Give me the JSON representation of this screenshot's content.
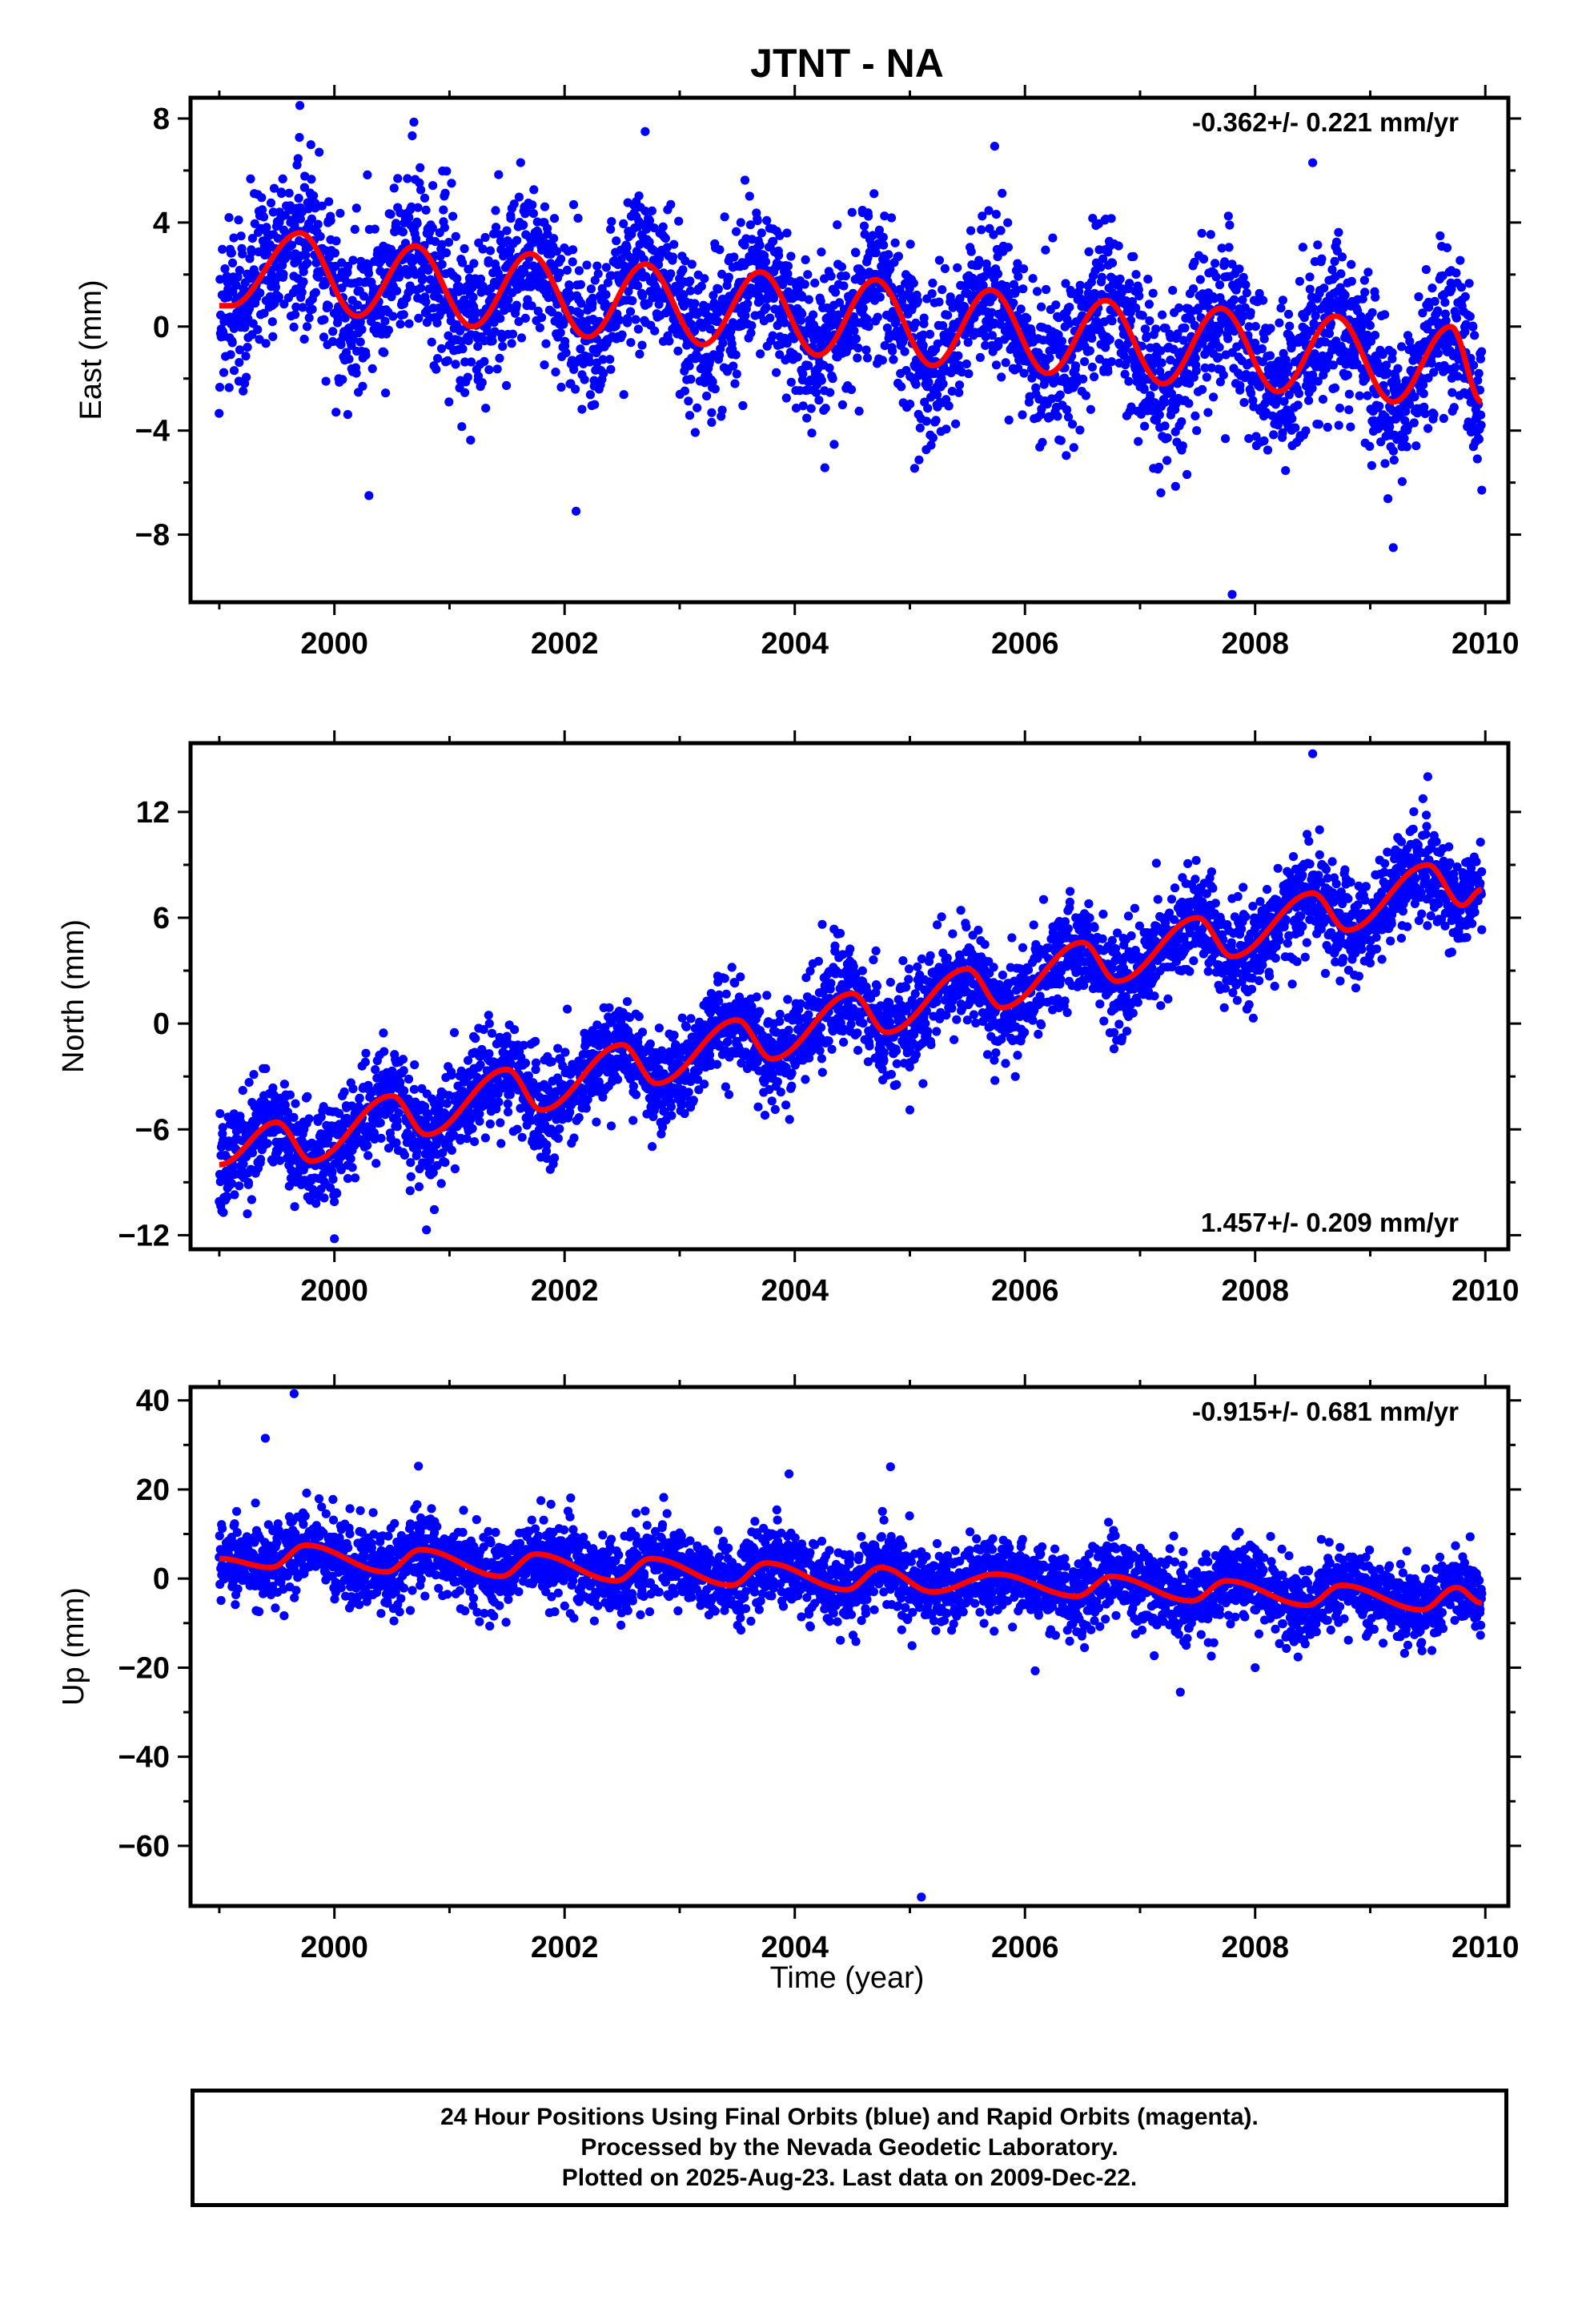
{
  "title": "JTNT - NA",
  "footer": {
    "line1": "24 Hour Positions Using Final Orbits (blue) and Rapid Orbits (magenta).",
    "line2": "Processed by the Nevada Geodetic Laboratory.",
    "line3": "Plotted on 2025-Aug-23. Last data on 2009-Dec-22."
  },
  "colors": {
    "points": "#0000ff",
    "model": "#ff0000"
  },
  "chart_data": [
    {
      "type": "scatter",
      "ylabel": "East (mm)",
      "xlim": [
        1998.75,
        2010.2
      ],
      "ylim": [
        -10.6,
        8.8
      ],
      "xticks": [
        2000,
        2002,
        2004,
        2006,
        2008,
        2010
      ],
      "xtick_labels": [
        "2000",
        "2002",
        "2004",
        "2006",
        "2008",
        "2010"
      ],
      "yticks": [
        -8,
        -4,
        0,
        4,
        8
      ],
      "ytick_labels": [
        "−8",
        "−4",
        "0",
        "4",
        "8"
      ],
      "rate_label": "-0.362+/- 0.221 mm/yr",
      "rate_position": "top-right",
      "model": {
        "x_range": [
          1999.0,
          2009.97
        ],
        "mid_value": 0.0,
        "rate": -0.362,
        "step_up": [],
        "annual_peaks": [
          [
            1999.7,
            3.6
          ],
          [
            2000.7,
            3.1
          ],
          [
            2001.7,
            2.8
          ],
          [
            2002.7,
            2.4
          ],
          [
            2003.7,
            2.1
          ],
          [
            2004.7,
            1.8
          ],
          [
            2005.7,
            1.4
          ],
          [
            2006.7,
            1.0
          ],
          [
            2007.7,
            0.7
          ],
          [
            2008.7,
            0.4
          ],
          [
            2009.7,
            0.0
          ]
        ],
        "annual_troughs": [
          [
            1999.1,
            0.8
          ],
          [
            2000.2,
            0.4
          ],
          [
            2001.2,
            0.0
          ],
          [
            2002.2,
            -0.4
          ],
          [
            2003.2,
            -0.7
          ],
          [
            2004.2,
            -1.1
          ],
          [
            2005.2,
            -1.5
          ],
          [
            2006.2,
            -1.8
          ],
          [
            2007.2,
            -2.2
          ],
          [
            2008.2,
            -2.5
          ],
          [
            2009.2,
            -2.9
          ],
          [
            2009.97,
            -2.9
          ]
        ]
      },
      "scatter": {
        "n": 3700,
        "x_range": [
          1999.0,
          2009.97
        ],
        "noise_sd": 1.5,
        "outliers": [
          [
            1999.7,
            8.5
          ],
          [
            2000.3,
            -6.5
          ],
          [
            2002.1,
            -7.1
          ],
          [
            2007.8,
            -10.3
          ],
          [
            2009.2,
            -8.5
          ],
          [
            2008.5,
            6.3
          ],
          [
            2002.7,
            7.5
          ]
        ]
      }
    },
    {
      "type": "scatter",
      "ylabel": "North (mm)",
      "xlim": [
        1998.75,
        2010.2
      ],
      "ylim": [
        -12.8,
        15.9
      ],
      "xticks": [
        2000,
        2002,
        2004,
        2006,
        2008,
        2010
      ],
      "xtick_labels": [
        "2000",
        "2002",
        "2004",
        "2006",
        "2008",
        "2010"
      ],
      "yticks": [
        -12,
        -6,
        0,
        6,
        12
      ],
      "ytick_labels": [
        "−12",
        "−6",
        "0",
        "6",
        "12"
      ],
      "rate_label": "1.457+/- 0.209 mm/yr",
      "rate_position": "bottom-right",
      "model": {
        "x_range": [
          1999.0,
          2009.97
        ],
        "annual_peaks": [
          [
            1999.5,
            -5.6
          ],
          [
            2000.5,
            -4.1
          ],
          [
            2001.5,
            -2.6
          ],
          [
            2002.5,
            -1.2
          ],
          [
            2003.5,
            0.2
          ],
          [
            2004.5,
            1.7
          ],
          [
            2005.5,
            3.1
          ],
          [
            2006.5,
            4.6
          ],
          [
            2007.5,
            6.0
          ],
          [
            2008.5,
            7.4
          ],
          [
            2009.5,
            9.0
          ]
        ],
        "annual_troughs": [
          [
            1999.0,
            -8.0
          ],
          [
            1999.8,
            -7.8
          ],
          [
            2000.8,
            -6.3
          ],
          [
            2001.8,
            -4.9
          ],
          [
            2002.8,
            -3.4
          ],
          [
            2003.8,
            -2.0
          ],
          [
            2004.8,
            -0.5
          ],
          [
            2005.8,
            0.9
          ],
          [
            2006.8,
            2.4
          ],
          [
            2007.8,
            3.8
          ],
          [
            2008.8,
            5.3
          ],
          [
            2009.8,
            6.7
          ],
          [
            2009.97,
            7.6
          ]
        ]
      },
      "scatter": {
        "n": 3700,
        "x_range": [
          1999.0,
          2009.97
        ],
        "noise_sd": 1.35,
        "outliers": [
          [
            2008.5,
            15.3
          ],
          [
            2009.5,
            14.0
          ],
          [
            2000.0,
            -12.2
          ],
          [
            2000.8,
            -11.7
          ],
          [
            2005.0,
            -4.9
          ]
        ]
      }
    },
    {
      "type": "scatter",
      "ylabel": "Up (mm)",
      "xlim": [
        1998.75,
        2010.2
      ],
      "ylim": [
        -73.5,
        43.0
      ],
      "xticks": [
        2000,
        2002,
        2004,
        2006,
        2008,
        2010
      ],
      "xtick_labels": [
        "2000",
        "2002",
        "2004",
        "2006",
        "2008",
        "2010"
      ],
      "yticks": [
        -60,
        -40,
        -20,
        0,
        20,
        40
      ],
      "ytick_labels": [
        "−60",
        "−40",
        "−20",
        "0",
        "20",
        "40"
      ],
      "rate_label": "-0.915+/- 0.681 mm/yr",
      "rate_position": "top-right",
      "model": {
        "x_range": [
          1999.0,
          2009.97
        ],
        "annual_peaks": [
          [
            1999.75,
            7.5
          ],
          [
            2000.75,
            6.5
          ],
          [
            2001.75,
            5.5
          ],
          [
            2002.75,
            4.5
          ],
          [
            2003.75,
            3.5
          ],
          [
            2004.75,
            2.5
          ],
          [
            2005.75,
            1.0
          ],
          [
            2006.75,
            0.5
          ],
          [
            2007.75,
            -0.5
          ],
          [
            2008.75,
            -1.5
          ],
          [
            2009.75,
            -2.0
          ]
        ],
        "annual_troughs": [
          [
            1999.0,
            4.5
          ],
          [
            1999.45,
            2.5
          ],
          [
            2000.45,
            1.5
          ],
          [
            2001.45,
            0.5
          ],
          [
            2002.45,
            -0.5
          ],
          [
            2003.45,
            -1.5
          ],
          [
            2004.45,
            -2.5
          ],
          [
            2005.2,
            -3.0
          ],
          [
            2006.45,
            -4.0
          ],
          [
            2007.45,
            -5.0
          ],
          [
            2008.45,
            -6.0
          ],
          [
            2009.45,
            -7.0
          ],
          [
            2009.97,
            -5.5
          ]
        ]
      },
      "scatter": {
        "n": 3700,
        "x_range": [
          1999.0,
          2009.97
        ],
        "noise_sd": 4.3,
        "outliers": [
          [
            1999.65,
            41.5
          ],
          [
            1999.4,
            31.5
          ],
          [
            2005.1,
            -71.5
          ],
          [
            2007.35,
            -25.5
          ],
          [
            2003.95,
            23.5
          ],
          [
            2008.0,
            -20.0
          ]
        ]
      }
    }
  ]
}
